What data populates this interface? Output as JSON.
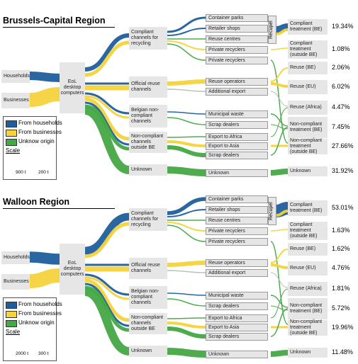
{
  "regions": [
    {
      "title": "Brussels-Capital Region",
      "sources": [
        "Households",
        "Businesses"
      ],
      "hub": "EoL desktop computers",
      "channels": [
        "Compliant channels for recycling",
        "Official reuse channels",
        "Belgian non-compliant channels",
        "Non-compliant channels outside BE",
        "Unknown"
      ],
      "destinations": [
        "Container parks",
        "Retailer shops",
        "Reuse centres",
        "Private recyclers",
        "Private recyclers",
        "Reuse operators",
        "Additional export",
        "Municipal waste",
        "Scrap dealers",
        "Export to Africa",
        "Export to Asia",
        "Scrap dealers",
        "Unknown"
      ],
      "recupel": "Recupel",
      "outcomes": [
        {
          "label": "Compliant treatment (BE)",
          "share": "19.34%"
        },
        {
          "label": "Compliant treatment (outside BE)",
          "share": "1.08%"
        },
        {
          "label": "Reuse (BE)",
          "share": "2.06%"
        },
        {
          "label": "Reuse (EU)",
          "share": "6.02%"
        },
        {
          "label": "Reuse (Africa)",
          "share": "4.47%"
        },
        {
          "label": "Non-compliant treatment (BE)",
          "share": "7.45%"
        },
        {
          "label": "Non-compliant treatment (outside BE)",
          "share": "27.66%"
        },
        {
          "label": "Unknown",
          "share": "31.92%"
        }
      ],
      "legend": {
        "items": [
          "From households",
          "From businesses",
          "Unknow origin"
        ],
        "scale": "Scale",
        "scale_values": [
          "900 t",
          "200 t"
        ]
      }
    },
    {
      "title": "Walloon Region",
      "sources": [
        "Households",
        "Businesses"
      ],
      "hub": "EoL desktop computers",
      "channels": [
        "Compliant channels for recycling",
        "Official reuse channels",
        "Belgian non-compliant channels",
        "Non-compliant channels outside BE",
        "Unknown"
      ],
      "destinations": [
        "Container parks",
        "Retailer shops",
        "Reuse centres",
        "Private recyclers",
        "Private recyclers",
        "Reuse operators",
        "Additional export",
        "Municipal waste",
        "Scrap dealers",
        "Export to Africa",
        "Export to Asia",
        "Scrap dealers",
        "Unknown"
      ],
      "recupel": "Recupel",
      "outcomes": [
        {
          "label": "Compliant treatment (BE)",
          "share": "53.01%"
        },
        {
          "label": "Compliant treatment (outside BE)",
          "share": "1.63%"
        },
        {
          "label": "Reuse (BE)",
          "share": "1.62%"
        },
        {
          "label": "Reuse (EU)",
          "share": "4.76%"
        },
        {
          "label": "Reuse (Africa)",
          "share": "1.81%"
        },
        {
          "label": "Non-compliant treatment (BE)",
          "share": "5.72%"
        },
        {
          "label": "Non-compliant treatment (outside BE)",
          "share": "19.96%"
        },
        {
          "label": "Unknown",
          "share": "11.48%"
        }
      ],
      "legend": {
        "items": [
          "From households",
          "From businesses",
          "Unknow origin"
        ],
        "scale": "Scale",
        "scale_values": [
          "2000 t",
          "300 t"
        ]
      }
    }
  ]
}
